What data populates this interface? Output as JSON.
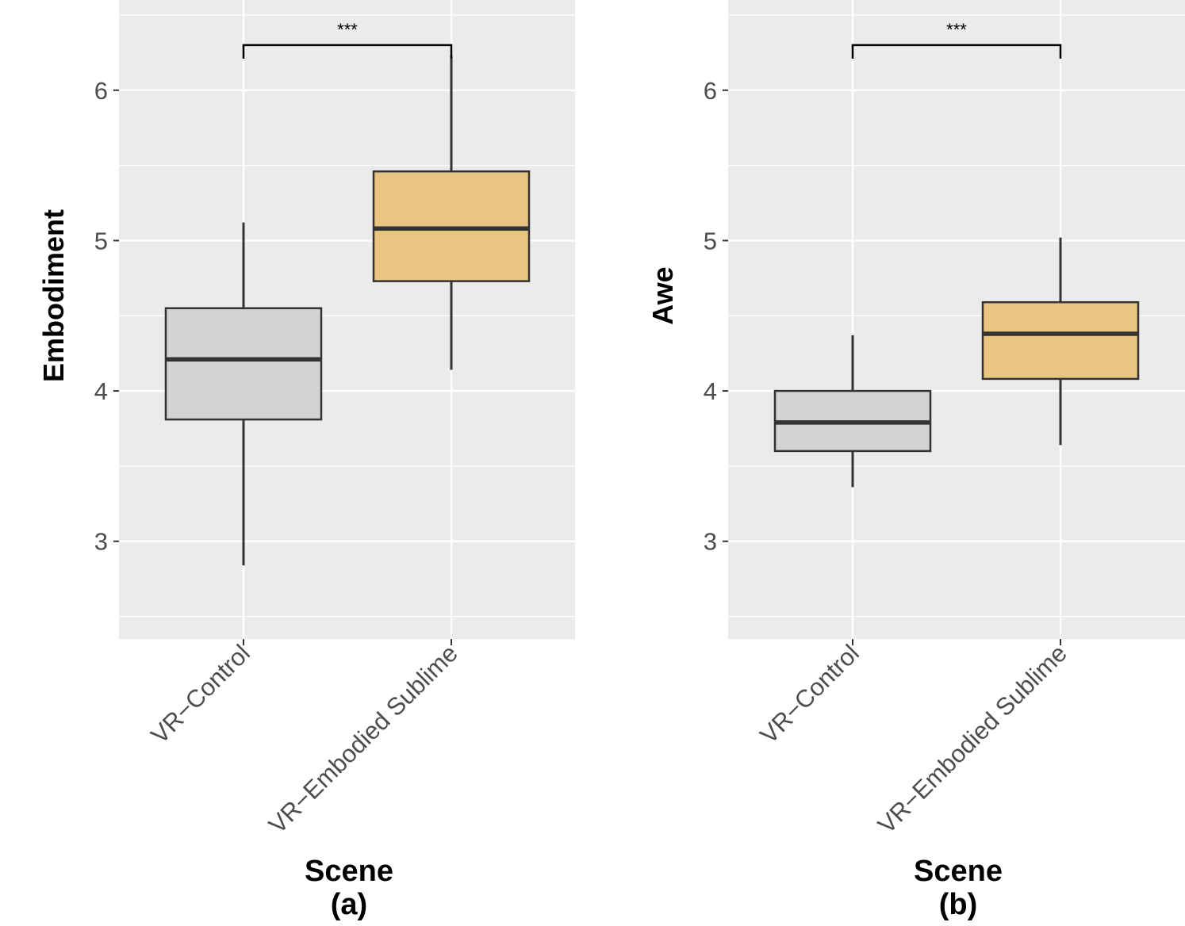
{
  "chart_data": [
    {
      "type": "boxplot",
      "ylabel": "Embodiment",
      "xlabel": "Scene",
      "caption": "(a)",
      "ylim": [
        2.35,
        6.6
      ],
      "yticks": [
        3,
        4,
        5,
        6
      ],
      "grid": true,
      "categories": [
        "VR−Control",
        "VR−Embodied Sublime"
      ],
      "boxes": [
        {
          "category": "VR−Control",
          "whisker_low": 2.84,
          "q1": 3.81,
          "median": 4.21,
          "q3": 4.55,
          "whisker_high": 5.12,
          "fill": "#d3d3d3"
        },
        {
          "category": "VR−Embodied Sublime",
          "whisker_low": 4.14,
          "q1": 4.73,
          "median": 5.08,
          "q3": 5.46,
          "whisker_high": 6.23,
          "fill": "#e9c582"
        }
      ],
      "significance": {
        "from": 0,
        "to": 1,
        "label": "***",
        "y": 6.3,
        "tick_down_to": 6.21
      }
    },
    {
      "type": "boxplot",
      "ylabel": "Awe",
      "xlabel": "Scene",
      "caption": "(b)",
      "ylim": [
        2.35,
        6.6
      ],
      "yticks": [
        3,
        4,
        5,
        6
      ],
      "grid": true,
      "categories": [
        "VR−Control",
        "VR−Embodied Sublime"
      ],
      "boxes": [
        {
          "category": "VR−Control",
          "whisker_low": 3.36,
          "q1": 3.6,
          "median": 3.79,
          "q3": 4.0,
          "whisker_high": 4.37,
          "fill": "#d3d3d3"
        },
        {
          "category": "VR−Embodied Sublime",
          "whisker_low": 3.64,
          "q1": 4.08,
          "median": 4.38,
          "q3": 4.59,
          "whisker_high": 5.02,
          "fill": "#e9c582"
        }
      ],
      "significance": {
        "from": 0,
        "to": 1,
        "label": "***",
        "y": 6.3,
        "tick_down_to": 6.21
      }
    }
  ],
  "colors": {
    "panel_bg": "#ebebeb",
    "grid": "#ffffff",
    "box_stroke": "#333333",
    "tick_text": "#4d4d4d"
  }
}
